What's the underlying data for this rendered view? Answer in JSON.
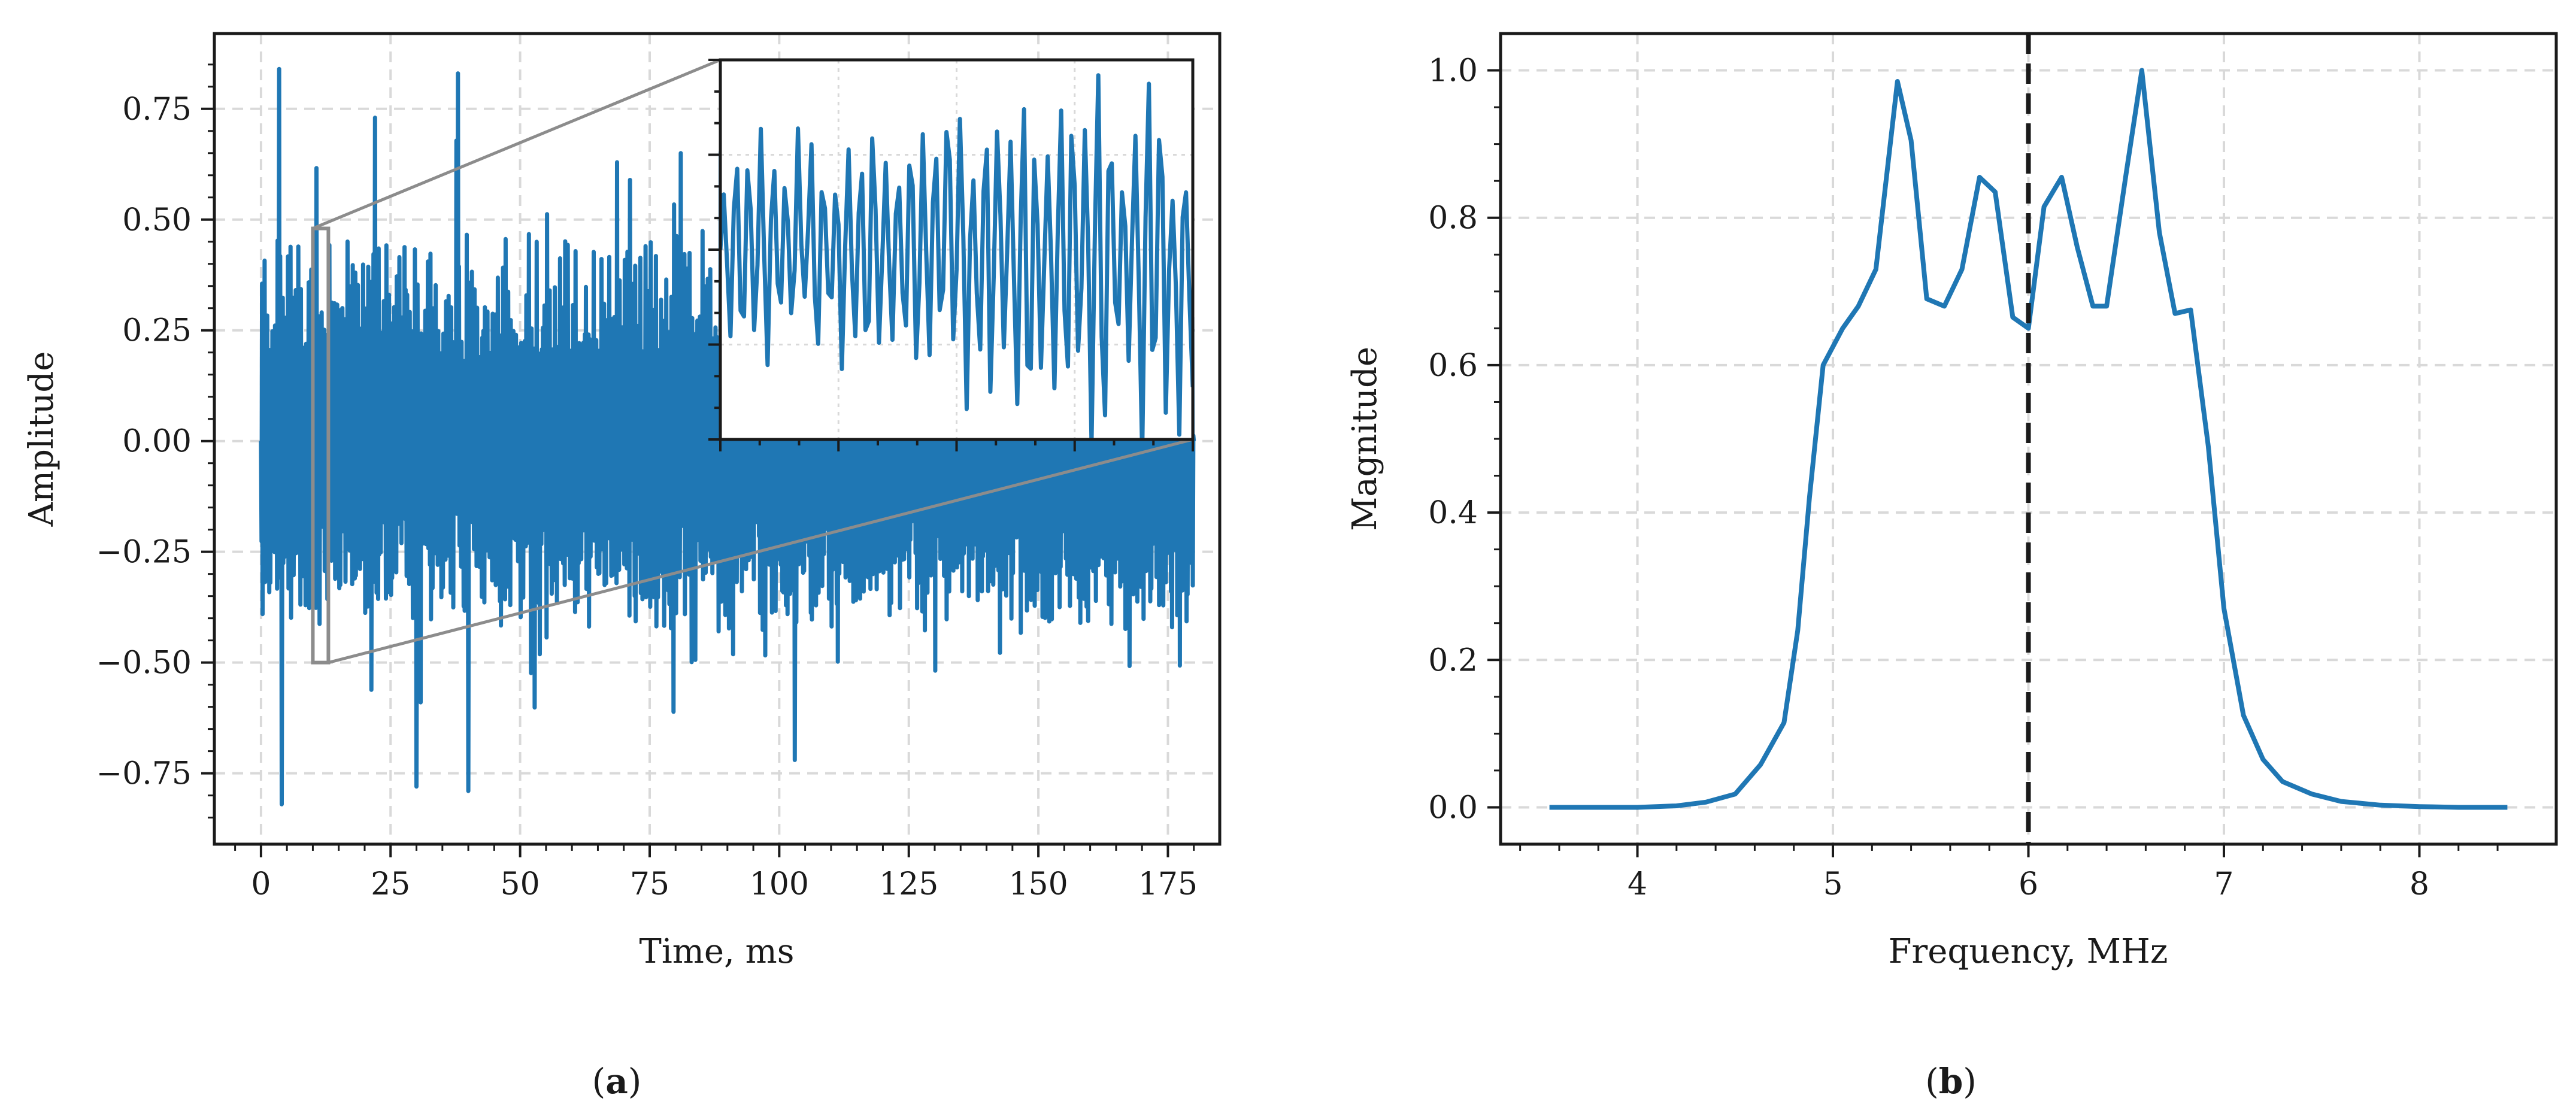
{
  "colors": {
    "series": "#1f77b4",
    "grid": "#d9d9d9",
    "axes": "#1a1a1a",
    "zoom_box": "#8c8c8c",
    "marker_line": "#1a1a1a"
  },
  "panels": {
    "a": {
      "label_open": "(",
      "label_letter": "a",
      "label_close": ")"
    },
    "b": {
      "label_open": "(",
      "label_letter": "b",
      "label_close": ")"
    }
  },
  "chart_data": [
    {
      "type": "line",
      "panel": "a",
      "title": "",
      "xlabel": "Time, ms",
      "ylabel": "Amplitude",
      "xlim": [
        -9,
        185
      ],
      "ylim": [
        -0.91,
        0.92
      ],
      "xticks": [
        0,
        25,
        50,
        75,
        100,
        125,
        150,
        175
      ],
      "xtick_labels": [
        "0",
        "25",
        "50",
        "75",
        "100",
        "125",
        "150",
        "175"
      ],
      "yticks": [
        -0.75,
        -0.5,
        -0.25,
        0.0,
        0.25,
        0.5,
        0.75
      ],
      "ytick_labels": [
        "−0.75",
        "−0.50",
        "−0.25",
        "0.00",
        "0.25",
        "0.50",
        "0.75"
      ],
      "grid": true,
      "series": [
        {
          "signal_duration_ms": 180,
          "envelope_range": [
            -0.82,
            0.84
          ],
          "description_points": [
            {
              "x": 0,
              "y": 0.0
            },
            {
              "x": 3.5,
              "y": 0.84
            },
            {
              "x": 4,
              "y": -0.82
            },
            {
              "x": 22,
              "y": 0.73
            },
            {
              "x": 30,
              "y": -0.78
            },
            {
              "x": 38,
              "y": 0.83
            },
            {
              "x": 40,
              "y": -0.79
            },
            {
              "x": 81,
              "y": 0.65
            },
            {
              "x": 103,
              "y": -0.72
            },
            {
              "x": 157,
              "y": 0.63
            },
            {
              "x": 180,
              "y": 0.0
            }
          ]
        }
      ],
      "inset": {
        "zoom_region_x": [
          10,
          13
        ],
        "zoom_region_y": [
          -0.5,
          0.48
        ]
      }
    },
    {
      "type": "line",
      "panel": "b",
      "title": "",
      "xlabel": "Frequency, MHz",
      "ylabel": "Magnitude",
      "xlim": [
        3.3,
        8.7
      ],
      "ylim": [
        -0.05,
        1.05
      ],
      "xticks": [
        4,
        5,
        6,
        7,
        8
      ],
      "xtick_labels": [
        "4",
        "5",
        "6",
        "7",
        "8"
      ],
      "yticks": [
        0.0,
        0.2,
        0.4,
        0.6,
        0.8,
        1.0
      ],
      "ytick_labels": [
        "0.0",
        "0.2",
        "0.4",
        "0.6",
        "0.8",
        "1.0"
      ],
      "grid": true,
      "vline_x": 6.0,
      "series": [
        {
          "x": [
            3.55,
            3.8,
            4.0,
            4.2,
            4.35,
            4.5,
            4.63,
            4.75,
            4.82,
            4.88,
            4.95,
            5.05,
            5.13,
            5.22,
            5.33,
            5.4,
            5.48,
            5.57,
            5.66,
            5.75,
            5.83,
            5.92,
            6.0,
            6.08,
            6.17,
            6.25,
            6.33,
            6.4,
            6.5,
            6.58,
            6.67,
            6.75,
            6.83,
            6.92,
            7.0,
            7.1,
            7.2,
            7.3,
            7.45,
            7.6,
            7.8,
            8.0,
            8.2,
            8.45
          ],
          "y": [
            0.0,
            0.0,
            0.0,
            0.002,
            0.007,
            0.018,
            0.058,
            0.115,
            0.24,
            0.42,
            0.6,
            0.65,
            0.68,
            0.73,
            0.985,
            0.905,
            0.69,
            0.68,
            0.73,
            0.855,
            0.835,
            0.665,
            0.65,
            0.815,
            0.855,
            0.76,
            0.68,
            0.68,
            0.86,
            1.0,
            0.78,
            0.67,
            0.675,
            0.49,
            0.27,
            0.125,
            0.065,
            0.035,
            0.018,
            0.008,
            0.003,
            0.001,
            0.0,
            0.0
          ]
        }
      ]
    }
  ]
}
